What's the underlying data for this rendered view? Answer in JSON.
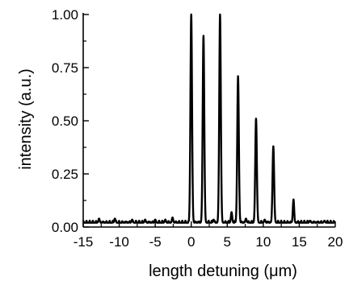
{
  "chart_data": {
    "type": "line",
    "title": "",
    "xlabel": "length detuning (μm)",
    "ylabel": "intensity (a.u.)",
    "xlim": [
      -15,
      20
    ],
    "ylim": [
      0,
      1.0
    ],
    "x_ticks": [
      -15,
      -10,
      -5,
      0,
      5,
      10,
      15,
      20
    ],
    "x_tick_labels": [
      "-15",
      "-10",
      "-5",
      "0",
      "5",
      "10",
      "15",
      "20"
    ],
    "y_ticks": [
      0,
      0.25,
      0.5,
      0.75,
      1.0
    ],
    "y_tick_labels": [
      "0.00",
      "0.25",
      "0.50",
      "0.75",
      "1.00"
    ],
    "grid": false,
    "legend": "none",
    "line_color": "#000000",
    "baseline": 0.02,
    "peaks": [
      {
        "x": -12.8,
        "y": 0.04
      },
      {
        "x": -10.6,
        "y": 0.04
      },
      {
        "x": -8.2,
        "y": 0.035
      },
      {
        "x": -6.4,
        "y": 0.035
      },
      {
        "x": -5.0,
        "y": 0.035
      },
      {
        "x": -3.6,
        "y": 0.035
      },
      {
        "x": -2.6,
        "y": 0.045
      },
      {
        "x": 0.0,
        "y": 1.0
      },
      {
        "x": 1.7,
        "y": 0.9
      },
      {
        "x": 3.1,
        "y": 0.035
      },
      {
        "x": 4.0,
        "y": 1.0
      },
      {
        "x": 5.6,
        "y": 0.07
      },
      {
        "x": 6.5,
        "y": 0.71
      },
      {
        "x": 7.6,
        "y": 0.04
      },
      {
        "x": 9.0,
        "y": 0.51
      },
      {
        "x": 10.2,
        "y": 0.035
      },
      {
        "x": 11.4,
        "y": 0.38
      },
      {
        "x": 14.2,
        "y": 0.13
      },
      {
        "x": 16.5,
        "y": 0.03
      },
      {
        "x": 18.5,
        "y": 0.03
      }
    ]
  }
}
